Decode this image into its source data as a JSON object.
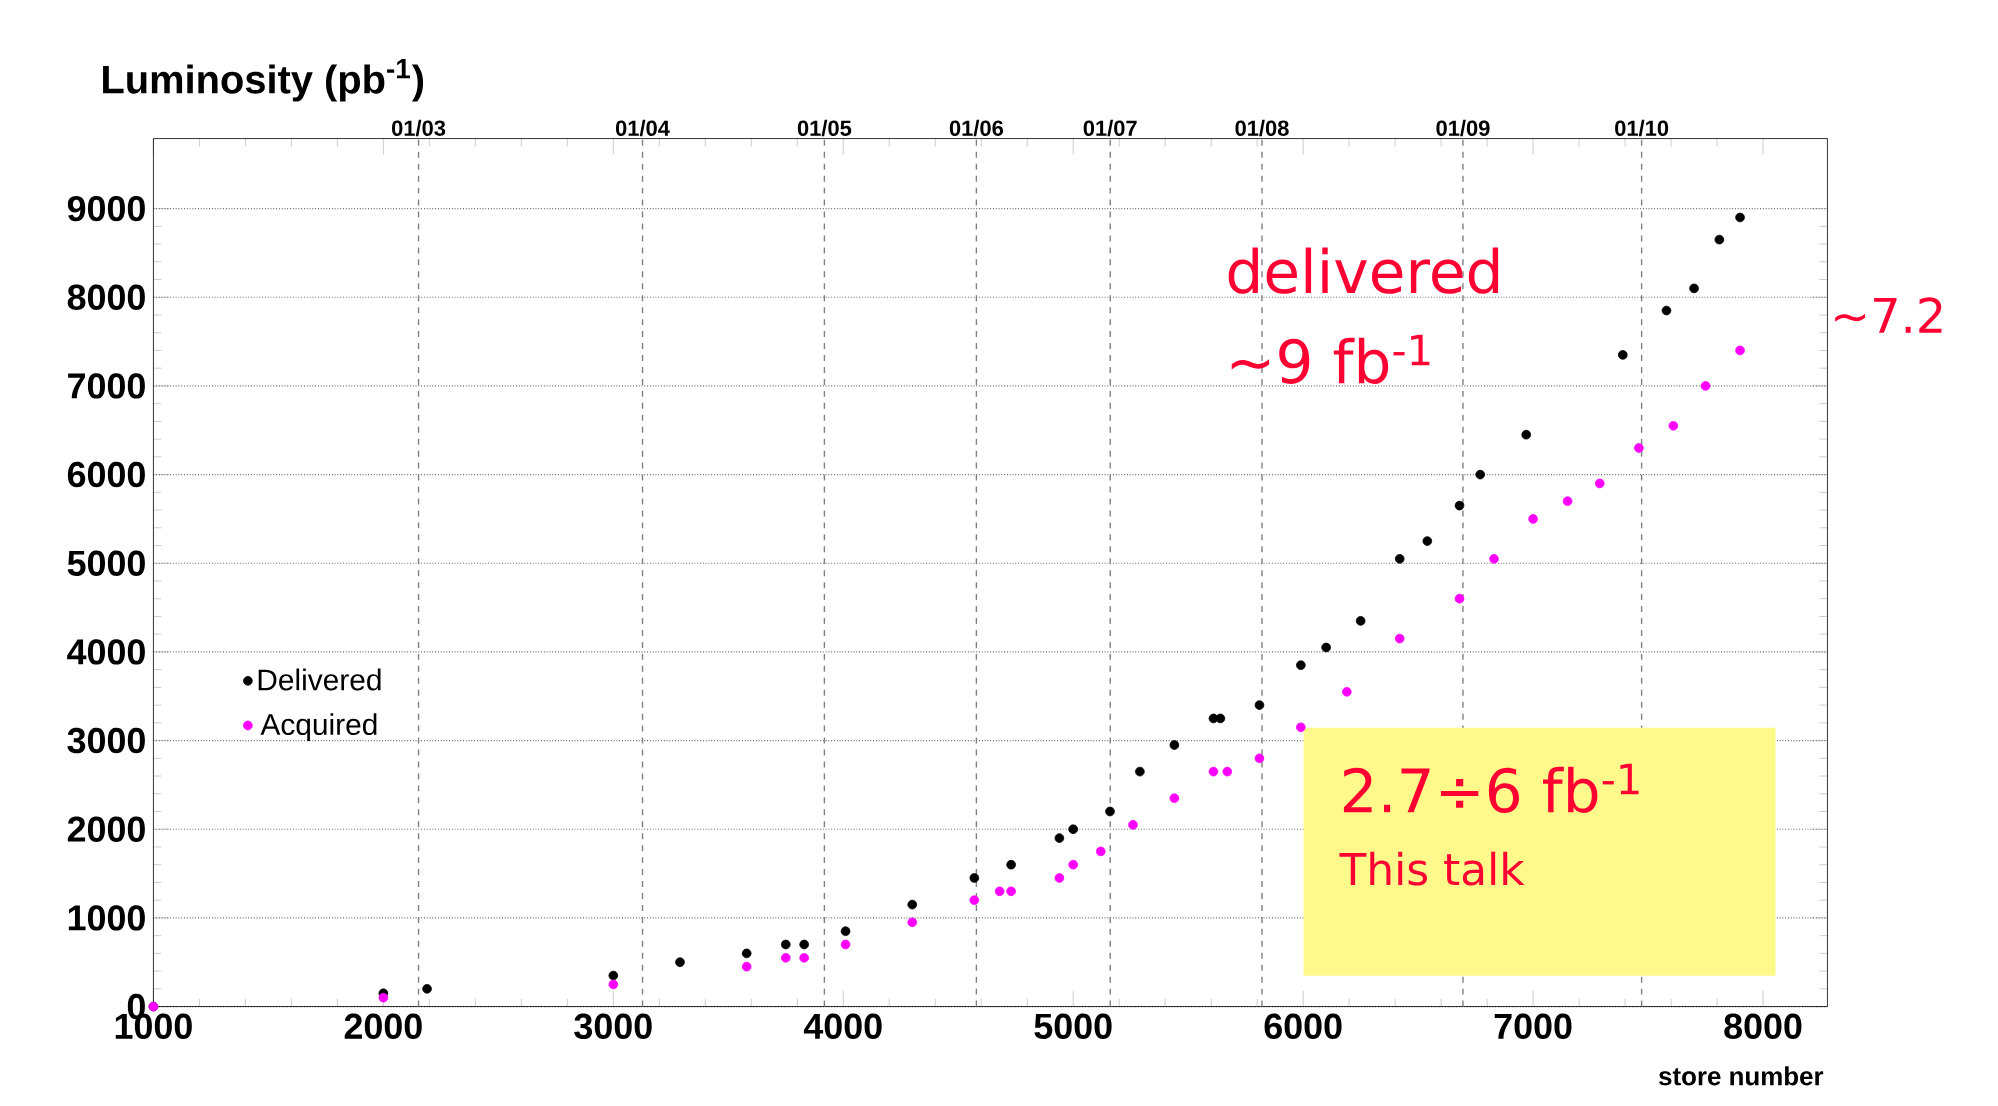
{
  "chart_data": {
    "type": "scatter",
    "ylabel": "Luminosity (pb$^{-1}$)",
    "xlabel": "store number",
    "xlim": [
      1000,
      8280
    ],
    "xticks": [
      1000,
      2000,
      3000,
      4000,
      5000,
      6000,
      7000,
      8000
    ],
    "ylim": [
      0,
      9790
    ],
    "yticks": [
      0,
      1000,
      2000,
      3000,
      4000,
      5000,
      6000,
      7000,
      8000,
      9000
    ],
    "ref_lines": [
      {
        "axis": "x",
        "value": 2153,
        "line_style": "dashed",
        "color": "#808080"
      },
      {
        "axis": "x",
        "value": 3127,
        "line_style": "dashed",
        "color": "#808080"
      },
      {
        "axis": "x",
        "value": 3918,
        "line_style": "dashed",
        "color": "#808080"
      },
      {
        "axis": "x",
        "value": 4579,
        "line_style": "dashed",
        "color": "#808080"
      },
      {
        "axis": "x",
        "value": 5161,
        "line_style": "dashed",
        "color": "#808080"
      },
      {
        "axis": "x",
        "value": 5821,
        "line_style": "dashed",
        "color": "#808080"
      },
      {
        "axis": "x",
        "value": 6695,
        "line_style": "dashed",
        "color": "#808080"
      },
      {
        "axis": "x",
        "value": 7472,
        "line_style": "dashed",
        "color": "#808080"
      }
    ],
    "grid": "y",
    "legend": "left",
    "series": [
      {
        "name": "Delivered",
        "color": "#000000",
        "x": [
          1000,
          2000,
          2190,
          3000,
          3290,
          3580,
          3750,
          3830,
          4010,
          4300,
          4570,
          4730,
          4940,
          5000,
          5160,
          5290,
          5440,
          5610,
          5640,
          5810,
          5990,
          6100,
          6250,
          6420,
          6540,
          6680,
          6770,
          6970,
          7390,
          7580,
          7700,
          7810,
          7900
        ],
        "values": [
          0,
          150,
          200,
          350,
          500,
          600,
          700,
          700,
          850,
          1150,
          1450,
          1600,
          1900,
          2000,
          2200,
          2650,
          2950,
          3250,
          3250,
          3400,
          3850,
          4050,
          4350,
          5050,
          5250,
          5650,
          6000,
          6450,
          7350,
          7850,
          8100,
          8650,
          8900
        ]
      },
      {
        "name": "Acquired",
        "color": "#ff00ff",
        "x": [
          1000,
          2000,
          3000,
          3580,
          3750,
          3830,
          4010,
          4300,
          4570,
          4680,
          4730,
          4940,
          5000,
          5120,
          5260,
          5440,
          5610,
          5670,
          5810,
          5990,
          6190,
          6420,
          6680,
          6830,
          7000,
          7150,
          7290,
          7460,
          7610,
          7750,
          7900
        ],
        "values": [
          0,
          100,
          250,
          450,
          550,
          550,
          700,
          950,
          1200,
          1300,
          1300,
          1450,
          1600,
          1750,
          2050,
          2350,
          2650,
          2650,
          2800,
          3150,
          3550,
          4150,
          4600,
          5050,
          5500,
          5700,
          5900,
          6300,
          6550,
          7000,
          7400
        ]
      }
    ],
    "annotations": [
      "delivered",
      "~9 fb$^{-1}$",
      "~7.2",
      "2.7÷6 fb$^{-1}$",
      "This talk",
      "01/03",
      "01/04",
      "01/05",
      "01/06",
      "01/07",
      "01/08",
      "01/09",
      "01/10"
    ]
  }
}
